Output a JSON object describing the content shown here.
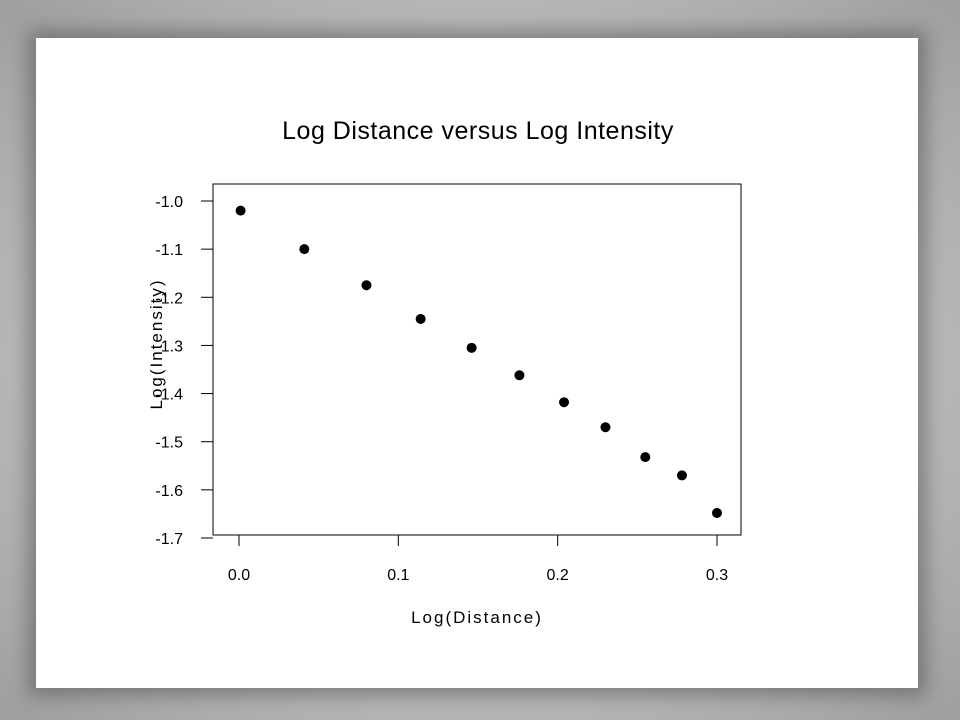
{
  "chart_data": {
    "type": "scatter",
    "title": "Log Distance versus Log Intensity",
    "xlabel": "Log(Distance)",
    "ylabel": "Log(Intensity)",
    "xlim": [
      0.0,
      0.3
    ],
    "ylim": [
      -1.7,
      -1.0
    ],
    "xticks": [
      "0.0",
      "0.1",
      "0.2",
      "0.3"
    ],
    "yticks": [
      "-1.0",
      "-1.1",
      "-1.2",
      "-1.3",
      "-1.4",
      "-1.5",
      "-1.6",
      "-1.7"
    ],
    "grid": false,
    "point_color": "#000000",
    "x": [
      0.001,
      0.041,
      0.08,
      0.114,
      0.146,
      0.176,
      0.204,
      0.23,
      0.255,
      0.278,
      0.3
    ],
    "y": [
      -1.02,
      -1.1,
      -1.175,
      -1.245,
      -1.305,
      -1.362,
      -1.418,
      -1.47,
      -1.532,
      -1.57,
      -1.648
    ]
  }
}
